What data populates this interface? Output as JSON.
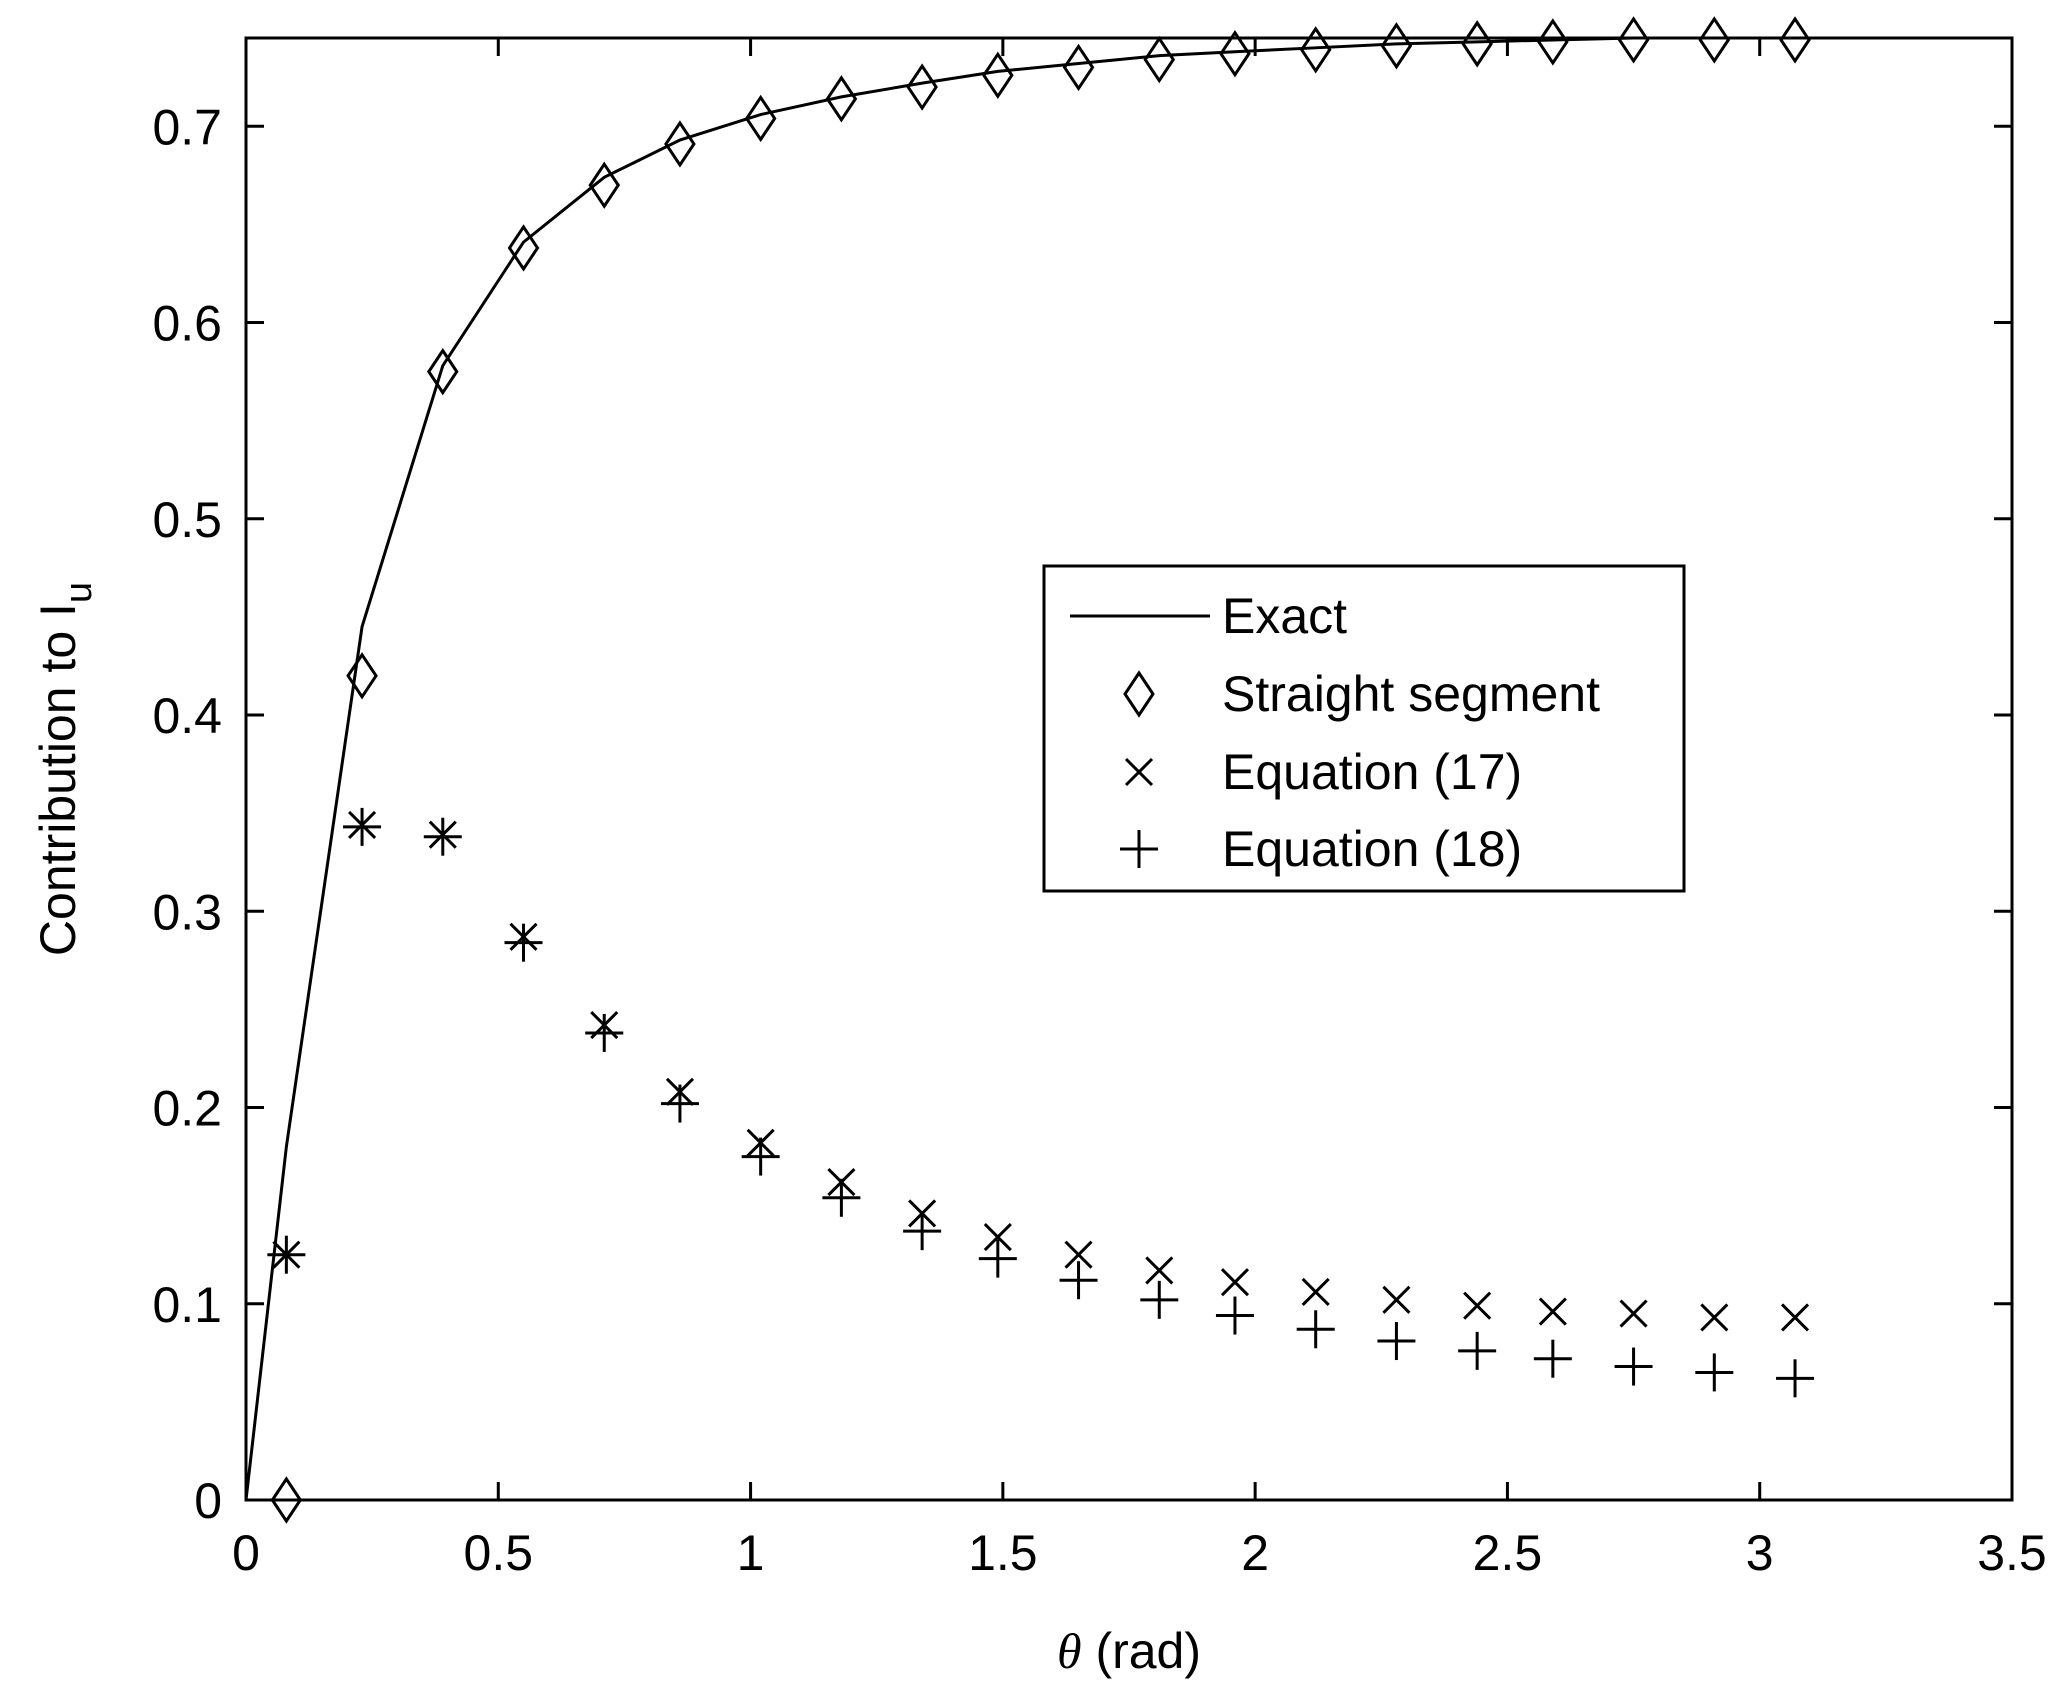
{
  "chart_data": {
    "type": "scatter",
    "xlabel_symbol": "θ",
    "xlabel_rest": " (rad)",
    "ylabel_main": "Contribution to I",
    "ylabel_sub": "u",
    "xlim": [
      0,
      3.5
    ],
    "ylim": [
      0,
      0.745
    ],
    "xticks": [
      0,
      0.5,
      1,
      1.5,
      2,
      2.5,
      3,
      3.5
    ],
    "xtick_labels": [
      "0",
      "0.5",
      "1",
      "1.5",
      "2",
      "2.5",
      "3",
      "3.5"
    ],
    "yticks": [
      0,
      0.1,
      0.2,
      0.3,
      0.4,
      0.5,
      0.6,
      0.7
    ],
    "ytick_labels": [
      "0",
      "0.1",
      "0.2",
      "0.3",
      "0.4",
      "0.5",
      "0.6",
      "0.7"
    ],
    "grid": false,
    "legend_position": "center-right",
    "series": [
      {
        "name": "Exact",
        "style": "line",
        "x": [
          0,
          0.08,
          0.23,
          0.39,
          0.55,
          0.71,
          0.86,
          1.02,
          1.18,
          1.34,
          1.49,
          1.65,
          1.81,
          1.96,
          2.12,
          2.28,
          2.44,
          2.59,
          2.75,
          2.91,
          3.07
        ],
        "y": [
          0,
          0.18,
          0.445,
          0.578,
          0.641,
          0.674,
          0.693,
          0.706,
          0.715,
          0.722,
          0.728,
          0.732,
          0.736,
          0.738,
          0.74,
          0.742,
          0.743,
          0.744,
          0.745,
          0.745,
          0.745
        ]
      },
      {
        "name": "Straight segment",
        "style": "diamond",
        "x": [
          0.08,
          0.23,
          0.39,
          0.55,
          0.71,
          0.86,
          1.02,
          1.18,
          1.34,
          1.49,
          1.65,
          1.81,
          1.96,
          2.12,
          2.28,
          2.44,
          2.59,
          2.75,
          2.91,
          3.07
        ],
        "y": [
          0,
          0.42,
          0.575,
          0.638,
          0.67,
          0.691,
          0.704,
          0.714,
          0.72,
          0.726,
          0.73,
          0.734,
          0.737,
          0.739,
          0.741,
          0.742,
          0.743,
          0.744,
          0.744,
          0.744
        ]
      },
      {
        "name": "Equation (17)",
        "style": "x",
        "x": [
          0.08,
          0.23,
          0.39,
          0.55,
          0.71,
          0.86,
          1.02,
          1.18,
          1.34,
          1.49,
          1.65,
          1.81,
          1.96,
          2.12,
          2.28,
          2.44,
          2.59,
          2.75,
          2.91,
          3.07
        ],
        "y": [
          0.125,
          0.344,
          0.339,
          0.287,
          0.242,
          0.208,
          0.182,
          0.162,
          0.146,
          0.134,
          0.125,
          0.117,
          0.111,
          0.106,
          0.102,
          0.099,
          0.096,
          0.095,
          0.093,
          0.093
        ]
      },
      {
        "name": "Equation (18)",
        "style": "plus",
        "x": [
          0.08,
          0.23,
          0.39,
          0.55,
          0.71,
          0.86,
          1.02,
          1.18,
          1.34,
          1.49,
          1.65,
          1.81,
          1.96,
          2.12,
          2.28,
          2.44,
          2.59,
          2.75,
          2.91,
          3.07
        ],
        "y": [
          0.125,
          0.343,
          0.338,
          0.284,
          0.238,
          0.202,
          0.175,
          0.154,
          0.137,
          0.123,
          0.112,
          0.102,
          0.094,
          0.087,
          0.081,
          0.076,
          0.072,
          0.068,
          0.065,
          0.062
        ]
      }
    ]
  }
}
